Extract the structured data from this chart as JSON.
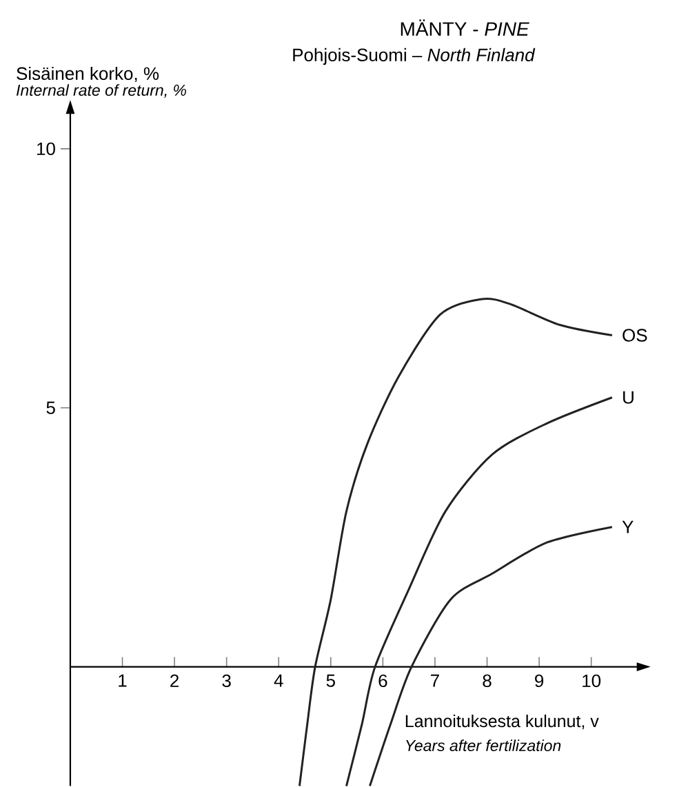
{
  "chart_data": {
    "type": "line",
    "title": "MÄNTY - *PINE*",
    "subtitle": "Pohjois-Suomi – *North Finland*",
    "ylabel": "Sisäinen korko, %",
    "xlabel": "Lannoituksesta kulunut, v",
    "annotations": [
      "Internal rate of return, %",
      "Years after fertilization"
    ],
    "xlim": [
      0,
      10.9
    ],
    "ylim": [
      -2.3,
      10.7
    ],
    "xticks": [
      1,
      2,
      3,
      4,
      5,
      6,
      7,
      8,
      9,
      10
    ],
    "yticks": [
      5,
      10
    ],
    "series": [
      {
        "name": "OS",
        "color": "#222222",
        "x": [
          4.4,
          4.55,
          4.7,
          5.0,
          5.3,
          5.7,
          6.3,
          7.1,
          7.9,
          8.45,
          9.4,
          10.4
        ],
        "values": [
          -2.3,
          -1.1,
          0,
          1.3,
          3.0,
          4.3,
          5.6,
          6.8,
          7.1,
          7.0,
          6.6,
          6.4
        ]
      },
      {
        "name": "U",
        "color": "#222222",
        "x": [
          5.3,
          5.6,
          5.85,
          6.5,
          7.2,
          8.1,
          9.15,
          10.4
        ],
        "values": [
          -2.3,
          -1.1,
          0,
          1.5,
          3.0,
          4.1,
          4.7,
          5.2
        ]
      },
      {
        "name": "Y",
        "color": "#222222",
        "x": [
          5.75,
          6.15,
          6.55,
          7.3,
          8.1,
          9.15,
          10.4
        ],
        "values": [
          -2.3,
          -1.1,
          0,
          1.3,
          1.8,
          2.4,
          2.7
        ]
      }
    ]
  }
}
